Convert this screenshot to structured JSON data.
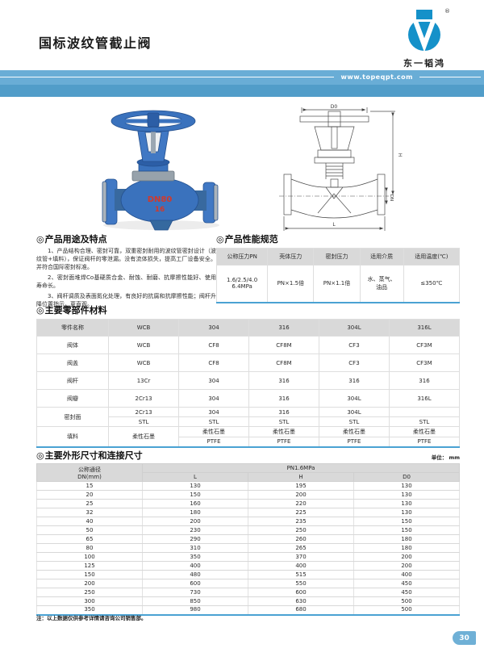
{
  "page": {
    "title": "国标波纹管截止阀",
    "note": "注：以上数据仅供参考详情请咨询公司销售部。",
    "unit": "单位： mm",
    "page_number": "30"
  },
  "header": {
    "website": "www.topeqpt.com",
    "logo_name": "东一韬鸿",
    "registered": "®"
  },
  "ui": {
    "bullet": "◎"
  },
  "photo": {
    "mark_dn": "DN80",
    "mark_pn": "16"
  },
  "drawing": {
    "d0": "D0",
    "h": "H",
    "dn": "DN",
    "l": "L"
  },
  "features": {
    "heading": "产品用途及特点",
    "paragraphs": [
      "1、产品结构合理、密封可靠，双重密封耐用的波纹管密封设计（波纹管+填料），保证阀杆的零泄漏。没有流体损失，提高工厂设备安全。并符合国际密封标准。",
      "2、密封面堆焊Co基硬质合金、耐蚀、耐磨、抗摩擦性能好、使用寿命长。",
      "3、阀杆调质及表面氮化处理，有良好的抗腐和抗摩擦性能；阀杆升降位置指示，更直观。"
    ]
  },
  "performance": {
    "heading": "产品性能规范",
    "headers": [
      "公称压力PN",
      "壳体压力",
      "密封压力",
      "适用介质",
      "适用温度(℃)"
    ],
    "cells": [
      "1.6/2.5/4.0\n6.4MPa",
      "PN×1.5倍",
      "PN×1.1倍",
      "水、蒸气、\n油品",
      "≤350℃"
    ]
  },
  "materials": {
    "heading": "主要零部件材料",
    "headers": [
      "零件名称",
      "WCB",
      "304",
      "316",
      "304L",
      "316L"
    ],
    "body": [
      {
        "cls": "r-tall",
        "cells": [
          {
            "t": "阀体"
          },
          {
            "t": "WCB"
          },
          {
            "t": "CF8"
          },
          {
            "t": "CF8M"
          },
          {
            "t": "CF3"
          },
          {
            "t": "CF3M"
          }
        ]
      },
      {
        "cls": "r-tall",
        "cells": [
          {
            "t": "阀盖"
          },
          {
            "t": "WCB"
          },
          {
            "t": "CF8"
          },
          {
            "t": "CF8M"
          },
          {
            "t": "CF3"
          },
          {
            "t": "CF3M"
          }
        ]
      },
      {
        "cls": "r-tall",
        "cells": [
          {
            "t": "阀杆"
          },
          {
            "t": "13Cr"
          },
          {
            "t": "304"
          },
          {
            "t": "316"
          },
          {
            "t": "316"
          },
          {
            "t": "316"
          }
        ]
      },
      {
        "cls": "r-tall",
        "cells": [
          {
            "t": "阀瓣"
          },
          {
            "t": "2Cr13"
          },
          {
            "t": "304"
          },
          {
            "t": "316"
          },
          {
            "t": "304L"
          },
          {
            "t": "316L"
          }
        ]
      },
      {
        "cls": "r-sub",
        "cells": [
          {
            "t": "密封面",
            "rs": 2
          },
          {
            "t": "2Cr13"
          },
          {
            "t": "304"
          },
          {
            "t": "316"
          },
          {
            "t": "304L"
          },
          {
            "t": ""
          }
        ]
      },
      {
        "cls": "r-sub",
        "cells": [
          {
            "t": "STL"
          },
          {
            "t": "STL"
          },
          {
            "t": "STL"
          },
          {
            "t": "STL"
          },
          {
            "t": "STL"
          }
        ]
      },
      {
        "cls": "r-sub",
        "cells": [
          {
            "t": "填料",
            "rs": 2
          },
          {
            "t": "柔性石墨",
            "rs": 2
          },
          {
            "t": "柔性石墨"
          },
          {
            "t": "柔性石墨"
          },
          {
            "t": "柔性石墨"
          },
          {
            "t": "柔性石墨"
          }
        ]
      },
      {
        "cls": "r-sub",
        "cells": [
          {
            "t": "PTFE"
          },
          {
            "t": "PTFE"
          },
          {
            "t": "PTFE"
          },
          {
            "t": "PTFE"
          }
        ]
      }
    ]
  },
  "dimensions": {
    "heading": "主要外形尺寸和连接尺寸",
    "col1": "公称通径\nDN(mm)",
    "group": "PN1.6MPa",
    "cols": [
      "L",
      "H",
      "D0"
    ],
    "rows": [
      [
        "15",
        "130",
        "195",
        "130"
      ],
      [
        "20",
        "150",
        "200",
        "130"
      ],
      [
        "25",
        "160",
        "220",
        "130"
      ],
      [
        "32",
        "180",
        "225",
        "130"
      ],
      [
        "40",
        "200",
        "235",
        "150"
      ],
      [
        "50",
        "230",
        "250",
        "150"
      ],
      [
        "65",
        "290",
        "260",
        "180"
      ],
      [
        "80",
        "310",
        "265",
        "180"
      ],
      [
        "100",
        "350",
        "370",
        "200"
      ],
      [
        "125",
        "400",
        "400",
        "200"
      ],
      [
        "150",
        "480",
        "515",
        "400"
      ],
      [
        "200",
        "600",
        "550",
        "450"
      ],
      [
        "250",
        "730",
        "600",
        "450"
      ],
      [
        "300",
        "850",
        "630",
        "500"
      ],
      [
        "350",
        "980",
        "680",
        "500"
      ]
    ]
  }
}
